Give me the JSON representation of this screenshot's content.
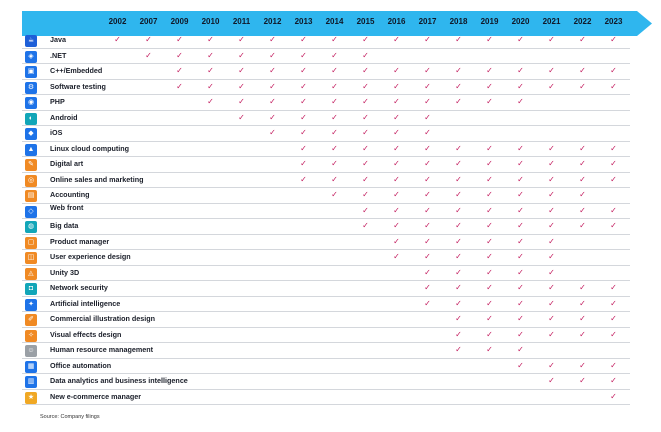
{
  "years": [
    "2002",
    "2007",
    "2009",
    "2010",
    "2011",
    "2012",
    "2013",
    "2014",
    "2015",
    "2016",
    "2017",
    "2018",
    "2019",
    "2020",
    "2021",
    "2022",
    "2023"
  ],
  "colors": {
    "arrow": "#2fb6ee",
    "check": "#c2185b",
    "icon_blue": "#1e73e8",
    "icon_orange": "#f08a24",
    "icon_teal": "#12a6b8"
  },
  "rows": [
    {
      "label": "Java",
      "icon": "java-icon",
      "color": "#1e5fd8",
      "years": [
        "2002",
        "2007",
        "2009",
        "2010",
        "2011",
        "2012",
        "2013",
        "2014",
        "2015",
        "2016",
        "2017",
        "2018",
        "2019",
        "2020",
        "2021",
        "2022",
        "2023"
      ]
    },
    {
      "label": ".NET",
      "icon": "dotnet-icon",
      "color": "#1e73e8",
      "years": [
        "2007",
        "2009",
        "2010",
        "2011",
        "2012",
        "2013",
        "2014",
        "2015"
      ]
    },
    {
      "label": "C++/Embedded",
      "icon": "chip-icon",
      "color": "#1e73e8",
      "years": [
        "2009",
        "2010",
        "2011",
        "2012",
        "2013",
        "2014",
        "2015",
        "2016",
        "2017",
        "2018",
        "2019",
        "2020",
        "2021",
        "2022",
        "2023"
      ]
    },
    {
      "label": "Software testing",
      "icon": "test-icon",
      "color": "#1e73e8",
      "years": [
        "2009",
        "2010",
        "2011",
        "2012",
        "2013",
        "2014",
        "2015",
        "2016",
        "2017",
        "2018",
        "2019",
        "2020",
        "2021",
        "2022",
        "2023"
      ]
    },
    {
      "label": "PHP",
      "icon": "php-icon",
      "color": "#1e73e8",
      "years": [
        "2010",
        "2011",
        "2012",
        "2013",
        "2014",
        "2015",
        "2016",
        "2017",
        "2018",
        "2019",
        "2020"
      ]
    },
    {
      "label": "Android",
      "icon": "android-icon",
      "color": "#12a6b8",
      "years": [
        "2011",
        "2012",
        "2013",
        "2014",
        "2015",
        "2016",
        "2017"
      ]
    },
    {
      "label": "iOS",
      "icon": "apple-icon",
      "color": "#1e73e8",
      "years": [
        "2012",
        "2013",
        "2014",
        "2015",
        "2016",
        "2017"
      ]
    },
    {
      "label": "Linux cloud computing",
      "icon": "linux-icon",
      "color": "#1e73e8",
      "years": [
        "2013",
        "2014",
        "2015",
        "2016",
        "2017",
        "2018",
        "2019",
        "2020",
        "2021",
        "2022",
        "2023"
      ]
    },
    {
      "label": "Digital art",
      "icon": "art-icon",
      "color": "#f08a24",
      "years": [
        "2013",
        "2014",
        "2015",
        "2016",
        "2017",
        "2018",
        "2019",
        "2020",
        "2021",
        "2022",
        "2023"
      ]
    },
    {
      "label": "Online sales and marketing",
      "icon": "marketing-icon",
      "color": "#f08a24",
      "years": [
        "2013",
        "2014",
        "2015",
        "2016",
        "2017",
        "2018",
        "2019",
        "2020",
        "2021",
        "2022",
        "2023"
      ]
    },
    {
      "label": "Accounting",
      "icon": "accounting-icon",
      "color": "#f08a24",
      "years": [
        "2014",
        "2015",
        "2016",
        "2017",
        "2018",
        "2019",
        "2020",
        "2021",
        "2022"
      ]
    },
    {
      "label": "Web front",
      "icon": "web-icon",
      "color": "#1e73e8",
      "two_line": true,
      "years": [
        "2015",
        "2016",
        "2017",
        "2018",
        "2019",
        "2020",
        "2021",
        "2022",
        "2023"
      ]
    },
    {
      "label": "Big data",
      "icon": "bigdata-icon",
      "color": "#12a6b8",
      "years": [
        "2015",
        "2016",
        "2017",
        "2018",
        "2019",
        "2020",
        "2021",
        "2022",
        "2023"
      ]
    },
    {
      "label": "Product manager",
      "icon": "product-icon",
      "color": "#f08a24",
      "years": [
        "2016",
        "2017",
        "2018",
        "2019",
        "2020",
        "2021"
      ]
    },
    {
      "label": "User experience design",
      "icon": "ux-icon",
      "color": "#f08a24",
      "years": [
        "2016",
        "2017",
        "2018",
        "2019",
        "2020",
        "2021"
      ]
    },
    {
      "label": "Unity 3D",
      "icon": "unity-icon",
      "color": "#f08a24",
      "years": [
        "2017",
        "2018",
        "2019",
        "2020",
        "2021"
      ]
    },
    {
      "label": "Network security",
      "icon": "security-icon",
      "color": "#12a6b8",
      "years": [
        "2017",
        "2018",
        "2019",
        "2020",
        "2021",
        "2022",
        "2023"
      ]
    },
    {
      "label": "Artificial intelligence",
      "icon": "ai-icon",
      "color": "#1e73e8",
      "years": [
        "2017",
        "2018",
        "2019",
        "2020",
        "2021",
        "2022",
        "2023"
      ]
    },
    {
      "label": "Commercial illustration design",
      "icon": "illustration-icon",
      "color": "#f08a24",
      "years": [
        "2018",
        "2019",
        "2020",
        "2021",
        "2022",
        "2023"
      ]
    },
    {
      "label": "Visual effects design",
      "icon": "vfx-icon",
      "color": "#f08a24",
      "years": [
        "2018",
        "2019",
        "2020",
        "2021",
        "2022",
        "2023"
      ]
    },
    {
      "label": "Human resource management",
      "icon": "hr-icon",
      "color": "#9aa0a6",
      "years": [
        "2018",
        "2019",
        "2020"
      ]
    },
    {
      "label": "Office automation",
      "icon": "office-icon",
      "color": "#1e73e8",
      "years": [
        "2020",
        "2021",
        "2022",
        "2023"
      ]
    },
    {
      "label": "Data analytics and business intelligence",
      "icon": "analytics-icon",
      "color": "#1e73e8",
      "years": [
        "2021",
        "2022",
        "2023"
      ]
    },
    {
      "label": "New e-commerce manager",
      "icon": "ecommerce-icon",
      "color": "#f0a824",
      "years": [
        "2023"
      ]
    }
  ],
  "check_glyph": "✓",
  "source": "Source: Company filings"
}
